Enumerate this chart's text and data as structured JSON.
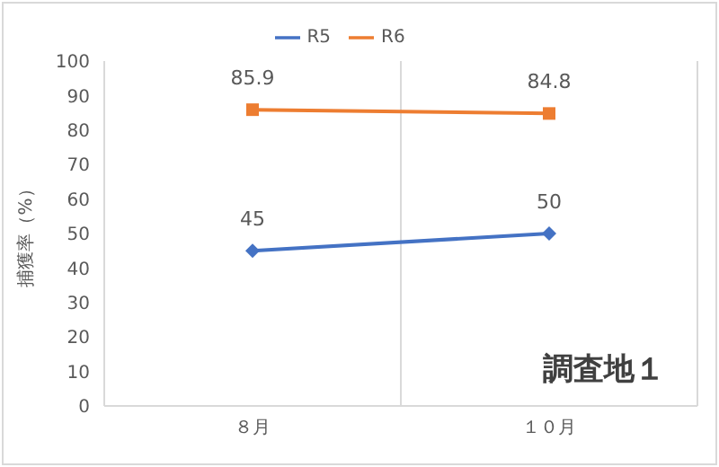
{
  "chart_data": {
    "type": "line",
    "ylabel": "捕獲率（%）",
    "categories": [
      "８月",
      "１０月"
    ],
    "series": [
      {
        "name": "R5",
        "color": "#4472c4",
        "values": [
          45,
          50
        ],
        "marker": "diamond"
      },
      {
        "name": "R6",
        "color": "#ed7d31",
        "values": [
          85.9,
          84.8
        ],
        "marker": "square"
      }
    ],
    "ylim": [
      0,
      100
    ],
    "yticks": [
      0,
      10,
      20,
      30,
      40,
      50,
      60,
      70,
      80,
      90,
      100
    ],
    "grid": "x",
    "legend": "top",
    "data_labels": true,
    "annotations": [
      "調査地１"
    ]
  }
}
